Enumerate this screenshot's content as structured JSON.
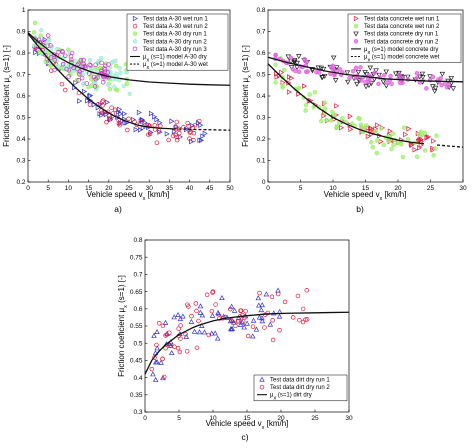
{
  "chart_data": [
    {
      "type": "scatter",
      "panel_label": "a)",
      "xlabel": "Vehicle speed v",
      "xlabel_sub": "x",
      "xlabel_unit": " [km/h]",
      "ylabel": "Friction coeficient μ",
      "ylabel_sub": "x",
      "ylabel_unit": " (s=1) [-]",
      "xlim": [
        0,
        50
      ],
      "ylim": [
        0.2,
        1.0
      ],
      "xticks": [
        "0",
        "5",
        "10",
        "15",
        "20",
        "25",
        "30",
        "35",
        "40",
        "45",
        "50"
      ],
      "yticks": [
        "0.2",
        "0.3",
        "0.4",
        "0.5",
        "0.6",
        "0.7",
        "0.8",
        "0.9",
        "1"
      ],
      "grid": false,
      "legend_position": "top-right",
      "series": [
        {
          "name": "Test data A-30 wet run 1",
          "marker": "triangle-right",
          "color": "#3333cc",
          "x_range": [
            1,
            44
          ],
          "spread": 0.04,
          "model": "wet"
        },
        {
          "name": "Test data A-30 wet run 2",
          "marker": "circle",
          "color": "#e01c3c",
          "x_range": [
            1,
            43
          ],
          "spread": 0.035,
          "model": "wet"
        },
        {
          "name": "Test data A-30 dry run 1",
          "marker": "circle-filled",
          "color": "#9ff06e",
          "x_range": [
            1,
            26
          ],
          "spread": 0.045,
          "model": "dry"
        },
        {
          "name": "Test data A-30 dry run 2",
          "marker": "circle-filled",
          "color": "#a8ecd8",
          "x_range": [
            1,
            26
          ],
          "spread": 0.045,
          "model": "dry"
        },
        {
          "name": "Test data A-30 dry run 3",
          "marker": "circle",
          "color": "#cc33cc",
          "x_range": [
            1,
            20
          ],
          "spread": 0.04,
          "model": "dry"
        }
      ],
      "lines": [
        {
          "name": "μ",
          "sub": "x",
          "suffix": " (s=1) model A-30 dry",
          "style": "solid",
          "x": [
            0,
            2,
            4,
            6,
            8,
            10,
            13,
            16,
            20,
            25,
            30,
            35,
            40,
            45,
            50
          ],
          "y": [
            0.895,
            0.86,
            0.83,
            0.8,
            0.775,
            0.755,
            0.73,
            0.71,
            0.69,
            0.675,
            0.665,
            0.66,
            0.655,
            0.652,
            0.65
          ]
        },
        {
          "name": "μ",
          "sub": "x",
          "suffix": " (s=1) model A-30 wet",
          "style": "solid-dashed",
          "x": [
            0,
            3,
            6,
            9,
            12,
            15,
            18,
            21,
            24,
            27,
            30,
            33,
            36,
            40,
            45,
            50
          ],
          "y": [
            0.89,
            0.82,
            0.75,
            0.69,
            0.635,
            0.585,
            0.545,
            0.51,
            0.485,
            0.465,
            0.455,
            0.45,
            0.447,
            0.445,
            0.443,
            0.441
          ],
          "dash_from": 36
        }
      ]
    },
    {
      "type": "scatter",
      "panel_label": "b)",
      "xlabel": "Vehicle speed v",
      "xlabel_sub": "x",
      "xlabel_unit": " [km/h]",
      "ylabel": "Friction coeficient μ",
      "ylabel_sub": "x",
      "ylabel_unit": " (s=1) [-]",
      "xlim": [
        0,
        30
      ],
      "ylim": [
        0.0,
        0.8
      ],
      "xticks": [
        "0",
        "5",
        "10",
        "15",
        "20",
        "25",
        "30"
      ],
      "yticks": [
        "0",
        "0.1",
        "0.2",
        "0.3",
        "0.4",
        "0.5",
        "0.6",
        "0.7",
        "0.8"
      ],
      "grid": false,
      "legend_position": "top-right",
      "series": [
        {
          "name": "Test data concrete wet run 1",
          "marker": "triangle-right",
          "color": "#e01c3c",
          "x_range": [
            1,
            26
          ],
          "spread": 0.035,
          "model": "wet"
        },
        {
          "name": "Test data concrete wet run 2",
          "marker": "circle-filled",
          "color": "#9ff06e",
          "x_range": [
            1,
            26
          ],
          "spread": 0.04,
          "model": "wet"
        },
        {
          "name": "Test data concrete dry run 1",
          "marker": "triangle-down",
          "color": "#222222",
          "x_range": [
            3,
            29
          ],
          "spread": 0.035,
          "model": "dry"
        },
        {
          "name": "Test data concrete dry run 2",
          "marker": "circle-filled",
          "color": "#e066e0",
          "x_range": [
            1,
            28
          ],
          "spread": 0.025,
          "model": "dry"
        }
      ],
      "lines": [
        {
          "name": "μ",
          "sub": "x",
          "suffix": " (s=1) model concrete dry",
          "style": "solid",
          "x": [
            0,
            3,
            6,
            9,
            12,
            15,
            18,
            21,
            24,
            27,
            30
          ],
          "y": [
            0.58,
            0.555,
            0.535,
            0.515,
            0.5,
            0.49,
            0.48,
            0.475,
            0.47,
            0.468,
            0.466
          ]
        },
        {
          "name": "μ",
          "sub": "x",
          "suffix": " (s=1) model concrete wet",
          "style": "solid-dashed",
          "x": [
            0,
            2,
            4,
            6,
            8,
            10,
            12,
            14,
            16,
            18,
            20,
            22,
            24,
            26,
            28,
            30
          ],
          "y": [
            0.55,
            0.49,
            0.435,
            0.385,
            0.34,
            0.3,
            0.27,
            0.245,
            0.225,
            0.21,
            0.195,
            0.185,
            0.178,
            0.172,
            0.167,
            0.162
          ],
          "dash_from": 25
        }
      ]
    },
    {
      "type": "scatter",
      "panel_label": "c)",
      "xlabel": "Vehicle speed v",
      "xlabel_sub": "x",
      "xlabel_unit": " [km/h]",
      "ylabel": "Friction coeficient μ",
      "ylabel_sub": "x",
      "ylabel_unit": " (s=1) [-]",
      "xlim": [
        0,
        30
      ],
      "ylim": [
        0.3,
        0.8
      ],
      "xticks": [
        "0",
        "5",
        "10",
        "15",
        "20",
        "25",
        "30"
      ],
      "yticks": [
        "0.3",
        "0.35",
        "0.4",
        "0.45",
        "0.5",
        "0.55",
        "0.6",
        "0.65",
        "0.7",
        "0.75",
        "0.8"
      ],
      "grid": false,
      "legend_position": "bottom-right",
      "series": [
        {
          "name": "Test data dirt dry run 1",
          "marker": "triangle-up",
          "color": "#3333cc",
          "x_range": [
            1,
            20
          ],
          "spread": 0.045,
          "model": "dirt"
        },
        {
          "name": "Test data dirt dry run 2",
          "marker": "circle",
          "color": "#e01c3c",
          "x_range": [
            1,
            24
          ],
          "spread": 0.045,
          "model": "dirt"
        }
      ],
      "lines": [
        {
          "name": "μ",
          "sub": "x",
          "suffix": " (s=1) dirt dry",
          "style": "solid",
          "x": [
            0,
            1,
            2,
            3,
            4,
            5,
            6,
            7,
            8,
            10,
            12,
            15,
            18,
            21,
            24,
            27,
            30
          ],
          "y": [
            0.41,
            0.45,
            0.475,
            0.495,
            0.51,
            0.525,
            0.535,
            0.545,
            0.553,
            0.565,
            0.573,
            0.58,
            0.585,
            0.587,
            0.588,
            0.589,
            0.59
          ]
        }
      ]
    }
  ]
}
